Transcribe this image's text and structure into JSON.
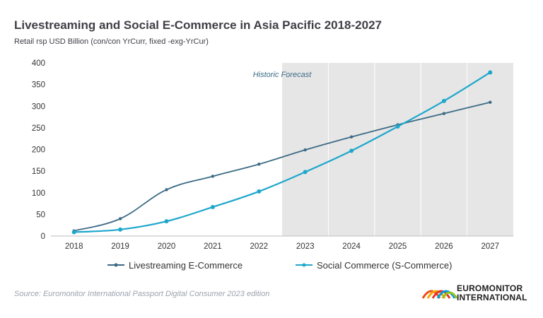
{
  "header": {
    "title": "Livestreaming and Social E-Commerce in Asia Pacific 2018-2027",
    "subtitle": "Retail rsp USD Billion (con/con YrCurr, fixed -exg-YrCur)"
  },
  "footer": {
    "source": "Source: Euromonitor International Passport Digital Consumer 2023 edition",
    "logo_line1": "EUROMONITOR",
    "logo_line2": "INTERNATIONAL"
  },
  "chart_data": {
    "type": "line",
    "x": [
      "2018",
      "2019",
      "2020",
      "2021",
      "2022",
      "2023",
      "2024",
      "2025",
      "2026",
      "2027"
    ],
    "ylim": [
      0,
      400
    ],
    "yticks": [
      0,
      50,
      100,
      150,
      200,
      250,
      300,
      350,
      400
    ],
    "annotation": "Historic Forecast",
    "forecast_start": "2023",
    "grid": "vertical",
    "legend_position": "bottom",
    "series": [
      {
        "name": "Livestreaming E-Commerce",
        "color": "#3d6b85",
        "values": [
          12,
          40,
          107,
          138,
          166,
          199,
          229,
          257,
          283,
          309
        ]
      },
      {
        "name": "Social Commerce (S-Commerce)",
        "color": "#1ea7cc",
        "values": [
          9,
          15,
          34,
          67,
          103,
          148,
          197,
          253,
          312,
          378
        ]
      }
    ]
  }
}
